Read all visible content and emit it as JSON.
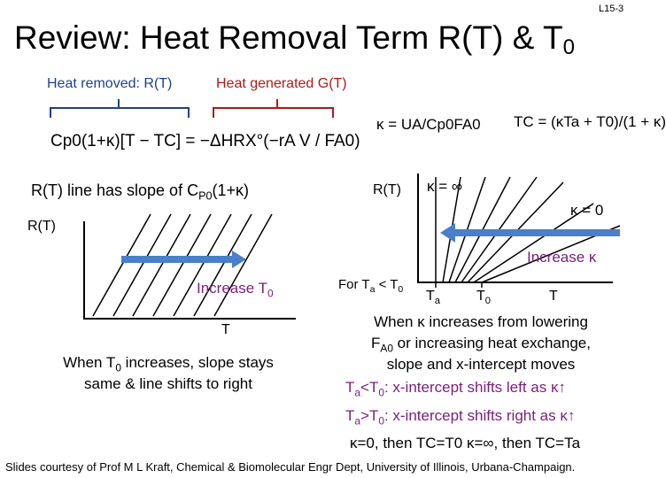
{
  "page_number": "L15-3",
  "title": "Review: Heat Removal Term R(T) & T",
  "title_sub": "0",
  "label_heat_removed": "Heat removed: R(T)",
  "label_heat_generated": "Heat generated G(T)",
  "equation_main": "Cp0(1+κ)[T − TC] = −ΔHRX°(−rA V / FA0)",
  "equation_kappa": "κ = UA/Cp0FA0",
  "equation_tc": "TC = (κTa + T0)/(1 + κ)",
  "slope_text": "R(T) line has slope of C",
  "slope_sub": "P0",
  "slope_end": "(1+κ)",
  "left_plot": {
    "y_label": "R(T)",
    "x_label": "T",
    "arrow_label": "Increase T",
    "arrow_sub": "0"
  },
  "left_caption": {
    "line1_a": "When T",
    "line1_sub": "0",
    "line1_b": " increases, slope stays",
    "line2": "same & line shifts to right"
  },
  "right_plot": {
    "y_label": "R(T)",
    "kappa_inf": "κ = ∞",
    "kappa_zero": "κ = 0",
    "arrow_label": "Increase κ",
    "for_label_a": "For T",
    "for_sub_a": "a",
    "for_label_b": " < T",
    "for_sub_b": "0",
    "tick_ta": "T",
    "tick_ta_sub": "a",
    "tick_t0": "T",
    "tick_t0_sub": "0",
    "tick_t": "T"
  },
  "right_caption": {
    "line1": "When κ increases from lowering",
    "line2_a": "F",
    "line2_sub": "A0",
    "line2_b": " or increasing heat exchange,",
    "line3": "slope and x-intercept moves",
    "line4_a": "T",
    "line4_sub1": "a",
    "line4_b": "<T",
    "line4_sub2": "0",
    "line4_c": ": x-intercept shifts left as κ↑",
    "line5_a": "T",
    "line5_sub1": "a",
    "line5_b": ">T",
    "line5_sub2": "0",
    "line5_c": ": x-intercept shifts right as κ↑",
    "line6": "κ=0, then TC=T0   κ=∞, then TC=Ta"
  },
  "footer": "Slides courtesy of Prof M L Kraft, Chemical & Biomolecular Engr Dept, University of Illinois, Urbana-Champaign.",
  "colors": {
    "blue": "#1f3f8f",
    "red": "#b01919",
    "arrow": "#4a7fc9",
    "purple": "#7a1f7a"
  }
}
